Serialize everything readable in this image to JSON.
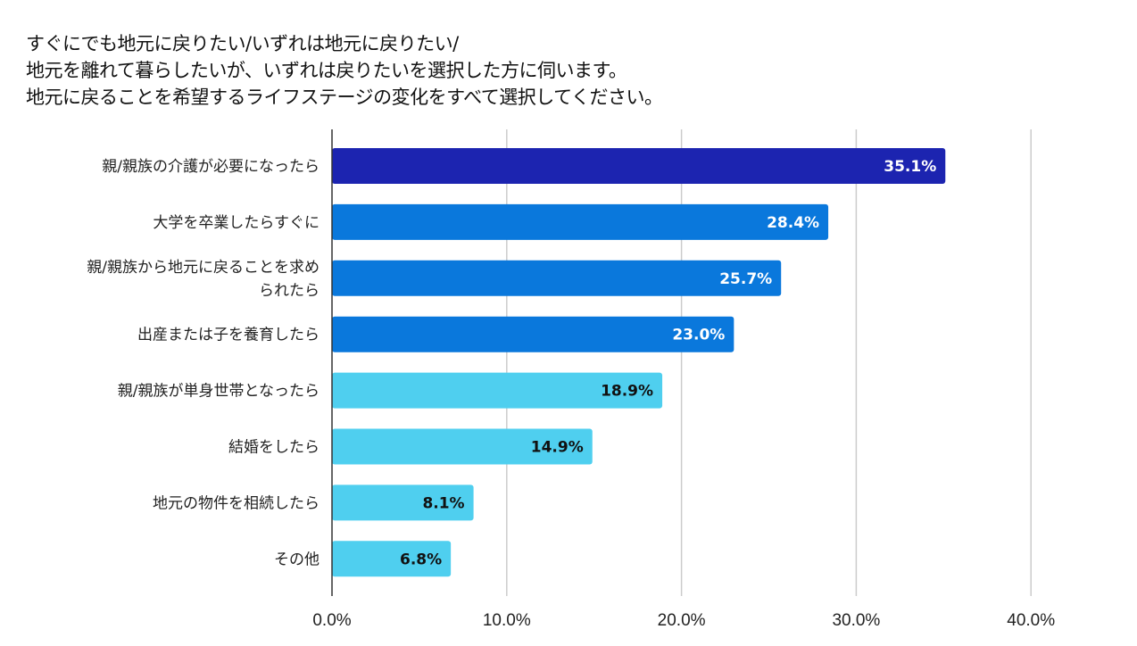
{
  "chart_data": {
    "type": "bar",
    "orientation": "horizontal",
    "title_lines": [
      "すぐにでも地元に戻りたい/いずれは地元に戻りたい/",
      "地元を離れて暮らしたいが、いずれは戻りたいを選択した方に伺います。",
      "地元に戻ることを希望するライフステージの変化をすべて選択してください。"
    ],
    "categories": [
      [
        "親/親族の介護が必要になったら"
      ],
      [
        "大学を卒業したらすぐに"
      ],
      [
        "親/親族から地元に戻ることを求め",
        "られたら"
      ],
      [
        "出産または子を養育したら"
      ],
      [
        "親/親族が単身世帯となったら"
      ],
      [
        "結婚をしたら"
      ],
      [
        "地元の物件を相続したら"
      ],
      [
        "その他"
      ]
    ],
    "values": [
      35.1,
      28.4,
      25.7,
      23.0,
      18.9,
      14.9,
      8.1,
      6.8
    ],
    "value_labels": [
      "35.1%",
      "28.4%",
      "25.7%",
      "23.0%",
      "18.9%",
      "14.9%",
      "8.1%",
      "6.8%"
    ],
    "bar_colors": [
      "#1c24b0",
      "#0a78dc",
      "#0a78dc",
      "#0a78dc",
      "#4fcfef",
      "#4fcfef",
      "#4fcfef",
      "#4fcfef"
    ],
    "label_colors": [
      "#ffffff",
      "#ffffff",
      "#ffffff",
      "#ffffff",
      "#111111",
      "#111111",
      "#111111",
      "#111111"
    ],
    "xlim": [
      0,
      40
    ],
    "xticks": [
      0,
      10,
      20,
      30,
      40
    ],
    "xtick_labels": [
      "0.0%",
      "10.0%",
      "20.0%",
      "30.0%",
      "40.0%"
    ],
    "grid": true,
    "legend": "none",
    "xlabel": "",
    "ylabel": ""
  }
}
